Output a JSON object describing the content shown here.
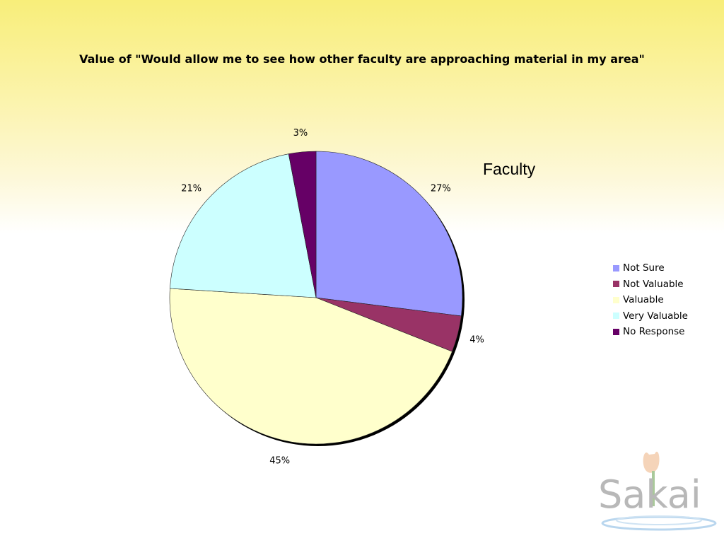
{
  "chart_data": {
    "type": "pie",
    "title": "Value of \"Would allow me to see how other faculty are approaching material in my area\"",
    "subtitle": "Faculty",
    "categories": [
      "Not Sure",
      "Not Valuable",
      "Valuable",
      "Very Valuable",
      "No Response"
    ],
    "values": [
      27,
      4,
      45,
      21,
      3
    ],
    "data_labels": [
      "27%",
      "4%",
      "45%",
      "21%",
      "3%"
    ],
    "colors": [
      "#9999ff",
      "#993366",
      "#ffffcc",
      "#ccffff",
      "#660066"
    ],
    "legend_position": "right"
  },
  "logo": {
    "text": "Sakai"
  }
}
